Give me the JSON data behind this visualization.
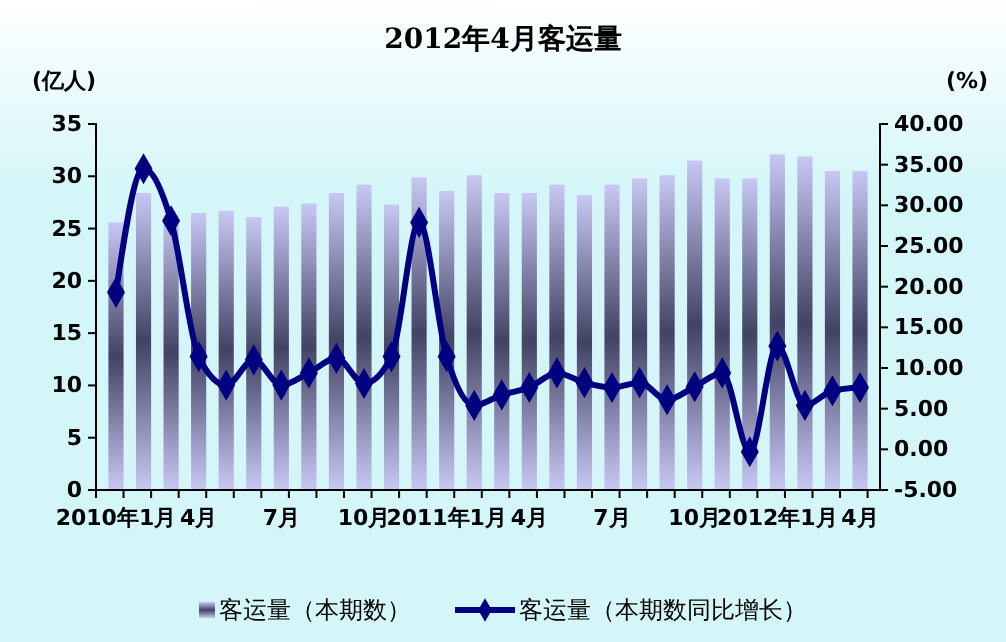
{
  "chart_data": {
    "type": "bar",
    "title": "2012年4月客运量",
    "ylabel": "(亿人)",
    "y2label": "(%)",
    "categories": [
      "2010年1月",
      null,
      null,
      "4月",
      null,
      null,
      "7月",
      null,
      null,
      "10月",
      null,
      null,
      "2011年1月",
      null,
      null,
      "4月",
      null,
      null,
      "7月",
      null,
      null,
      "10月",
      null,
      null,
      "2012年1月",
      null,
      null,
      "4月"
    ],
    "series": [
      {
        "name": "客运量（本期数）",
        "color": "#c8c8f4",
        "values": [
          25.6,
          28.4,
          26.3,
          26.5,
          26.7,
          26.1,
          27.1,
          27.4,
          28.4,
          29.2,
          27.3,
          29.9,
          28.6,
          30.1,
          28.4,
          28.4,
          29.2,
          28.2,
          29.2,
          29.8,
          30.1,
          31.5,
          29.8,
          29.8,
          32.1,
          31.9,
          30.5,
          30.5
        ]
      },
      {
        "name": "客运量（本期数同比增长）",
        "type": "line",
        "axis": "y2",
        "color": "#000080",
        "marker": "diamond",
        "values": [
          19.3,
          34.5,
          28.1,
          11.4,
          7.9,
          11.0,
          7.9,
          9.4,
          11.2,
          8.1,
          11.4,
          27.9,
          11.4,
          5.4,
          6.7,
          7.6,
          9.4,
          8.2,
          7.6,
          8.2,
          6.1,
          7.7,
          9.4,
          -0.3,
          12.7,
          5.4,
          7.2,
          7.6
        ]
      }
    ],
    "ylim": [
      0,
      35
    ],
    "yticks": [
      0,
      5,
      10,
      15,
      20,
      25,
      30,
      35
    ],
    "y2lim": [
      -5,
      40
    ],
    "y2ticks": [
      {
        "value": -5,
        "label": "-5.00"
      },
      {
        "value": 0,
        "label": "0.00"
      },
      {
        "value": 5,
        "label": "5.00"
      },
      {
        "value": 10,
        "label": "10.00"
      },
      {
        "value": 15,
        "label": "15.00"
      },
      {
        "value": 20,
        "label": "20.00"
      },
      {
        "value": 25,
        "label": "25.00"
      },
      {
        "value": 30,
        "label": "30.00"
      },
      {
        "value": 35,
        "label": "35.00"
      },
      {
        "value": 40,
        "label": "40.00"
      }
    ],
    "legend": "bottom"
  }
}
